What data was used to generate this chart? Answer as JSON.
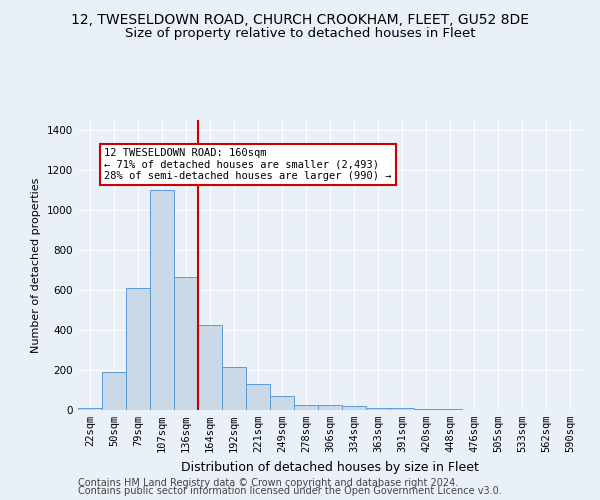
{
  "title1": "12, TWESELDOWN ROAD, CHURCH CROOKHAM, FLEET, GU52 8DE",
  "title2": "Size of property relative to detached houses in Fleet",
  "xlabel": "Distribution of detached houses by size in Fleet",
  "ylabel": "Number of detached properties",
  "categories": [
    "22sqm",
    "50sqm",
    "79sqm",
    "107sqm",
    "136sqm",
    "164sqm",
    "192sqm",
    "221sqm",
    "249sqm",
    "278sqm",
    "306sqm",
    "334sqm",
    "363sqm",
    "391sqm",
    "420sqm",
    "448sqm",
    "476sqm",
    "505sqm",
    "533sqm",
    "562sqm",
    "590sqm"
  ],
  "values": [
    10,
    190,
    610,
    1100,
    665,
    425,
    215,
    130,
    70,
    25,
    25,
    20,
    10,
    8,
    5,
    4,
    1,
    0,
    0,
    0,
    0
  ],
  "bar_color": "#c9d9e8",
  "bar_edge_color": "#5b9bd5",
  "marker_label": "12 TWESELDOWN ROAD: 160sqm",
  "annotation_line1": "← 71% of detached houses are smaller (2,493)",
  "annotation_line2": "28% of semi-detached houses are larger (990) →",
  "annotation_box_color": "#ffffff",
  "annotation_box_edge": "#cc0000",
  "marker_line_color": "#cc0000",
  "ylim": [
    0,
    1450
  ],
  "yticks": [
    0,
    200,
    400,
    600,
    800,
    1000,
    1200,
    1400
  ],
  "footer1": "Contains HM Land Registry data © Crown copyright and database right 2024.",
  "footer2": "Contains public sector information licensed under the Open Government Licence v3.0.",
  "background_color": "#eaf0f8",
  "plot_background": "#eaf0f8",
  "grid_color": "#ffffff",
  "title1_fontsize": 10,
  "title2_fontsize": 9.5,
  "xlabel_fontsize": 9,
  "ylabel_fontsize": 8,
  "tick_fontsize": 7.5,
  "footer_fontsize": 7,
  "annotation_fontsize": 7.5
}
